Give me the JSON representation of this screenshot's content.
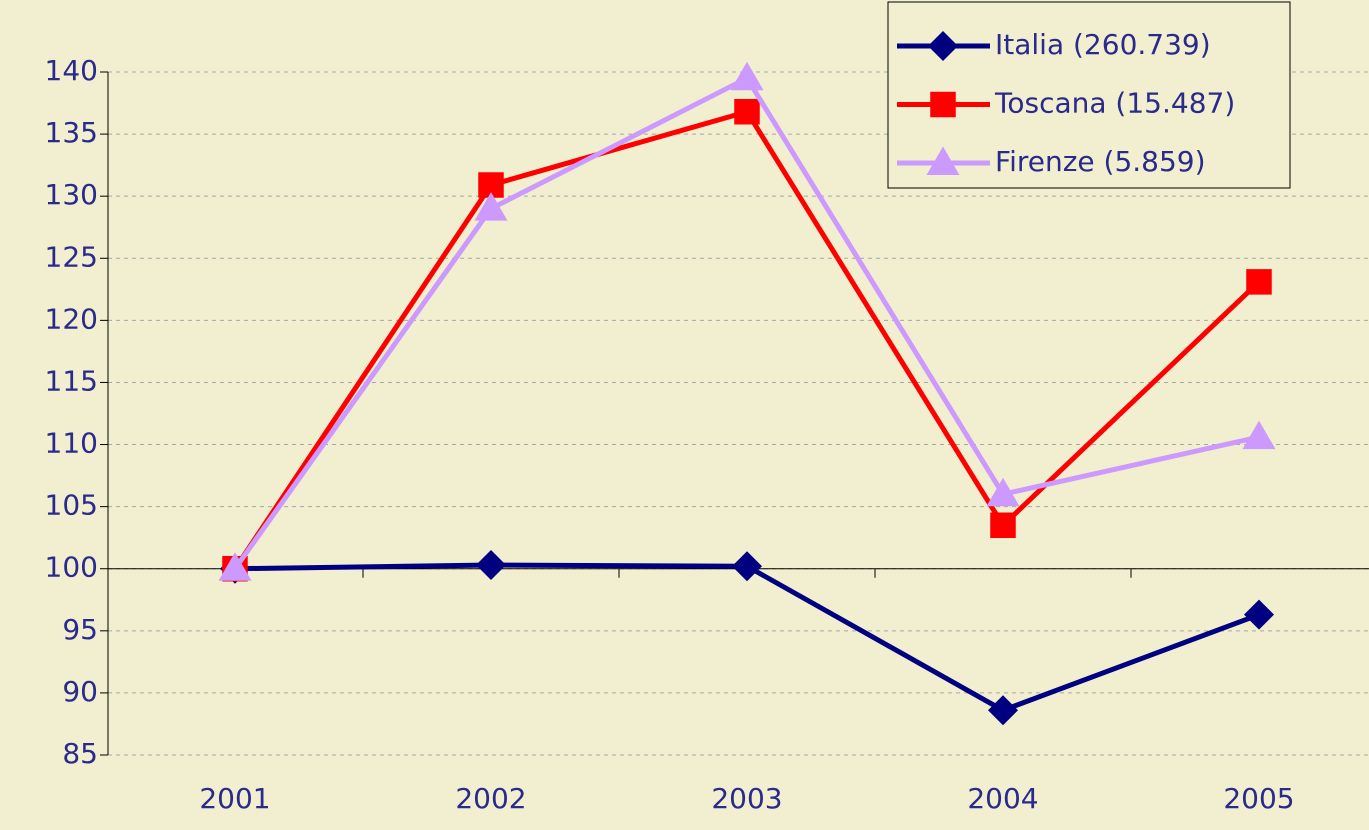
{
  "chart_data": {
    "type": "line",
    "categories": [
      "2001",
      "2002",
      "2003",
      "2004",
      "2005"
    ],
    "series": [
      {
        "name": "Italia (260.739)",
        "color": "#000080",
        "marker": "diamond",
        "values": [
          100,
          100.3,
          100.2,
          88.6,
          96.3
        ]
      },
      {
        "name": "Toscana (15.487)",
        "color": "#ff0000",
        "marker": "square",
        "values": [
          100,
          130.9,
          136.8,
          103.5,
          123.1
        ]
      },
      {
        "name": "Firenze (5.859)",
        "color": "#cc99ff",
        "marker": "triangle",
        "values": [
          100,
          129,
          139.5,
          106,
          110.6
        ]
      }
    ],
    "ylim": [
      85,
      140
    ],
    "yticks": [
      85,
      90,
      95,
      100,
      105,
      110,
      115,
      120,
      125,
      130,
      135,
      140
    ],
    "x_axis_crosses_at": 100,
    "grid": true,
    "legend": "top-right"
  }
}
